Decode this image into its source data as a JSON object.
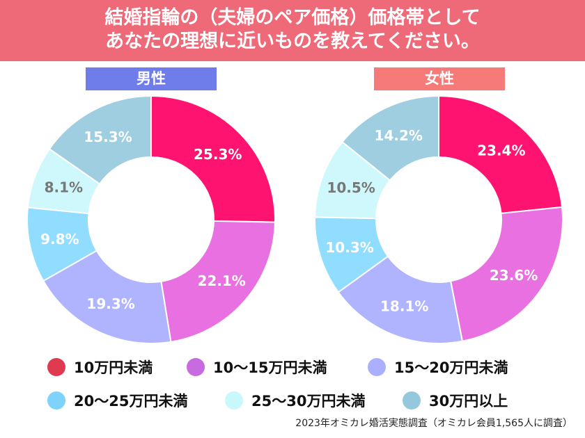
{
  "title_lines": [
    "結婚指輪の（夫婦のペア価格）価格帯として",
    "あなたの理想に近いものを教えてください。"
  ],
  "colors": {
    "banner": "#ef6a78",
    "male_tag": "#6f7deb",
    "female_tag": "#f67a78"
  },
  "chart_data": [
    {
      "type": "pie",
      "variant": "donut",
      "title": "男性",
      "categories": [
        "10万円未満",
        "10〜15万円未満",
        "15〜20万円未満",
        "20〜25万円未満",
        "25〜30万円未満",
        "30万円以上"
      ],
      "values": [
        25.3,
        22.1,
        19.3,
        9.8,
        8.1,
        15.3
      ],
      "labels": [
        "25.3%",
        "22.1%",
        "19.3%",
        "9.8%",
        "8.1%",
        "15.3%"
      ],
      "colors": [
        "#fe1470",
        "#e870e0",
        "#b0b4ff",
        "#90ddff",
        "#cff8fc",
        "#9ecee0"
      ]
    },
    {
      "type": "pie",
      "variant": "donut",
      "title": "女性",
      "categories": [
        "10万円未満",
        "10〜15万円未満",
        "15〜20万円未満",
        "20〜25万円未満",
        "25〜30万円未満",
        "30万円以上"
      ],
      "values": [
        23.4,
        23.6,
        18.1,
        10.3,
        10.5,
        14.2
      ],
      "labels": [
        "23.4%",
        "23.6%",
        "18.1%",
        "10.3%",
        "10.5%",
        "14.2%"
      ],
      "colors": [
        "#fe1470",
        "#e870e0",
        "#b0b4ff",
        "#90ddff",
        "#cff8fc",
        "#9ecee0"
      ]
    }
  ],
  "legend": [
    {
      "label": "10万円未満",
      "color": "#e03a50"
    },
    {
      "label": "10〜15万円未満",
      "color": "#c86ae0"
    },
    {
      "label": "15〜20万円未満",
      "color": "#aab0ff"
    },
    {
      "label": "20〜25万円未満",
      "color": "#7dd3fc"
    },
    {
      "label": "25〜30万円未満",
      "color": "#c8f8fa"
    },
    {
      "label": "30万円以上",
      "color": "#95c8dc"
    }
  ],
  "source": "2023年オミカレ婚活実態調査（オミカレ会員1,565人に調査）"
}
